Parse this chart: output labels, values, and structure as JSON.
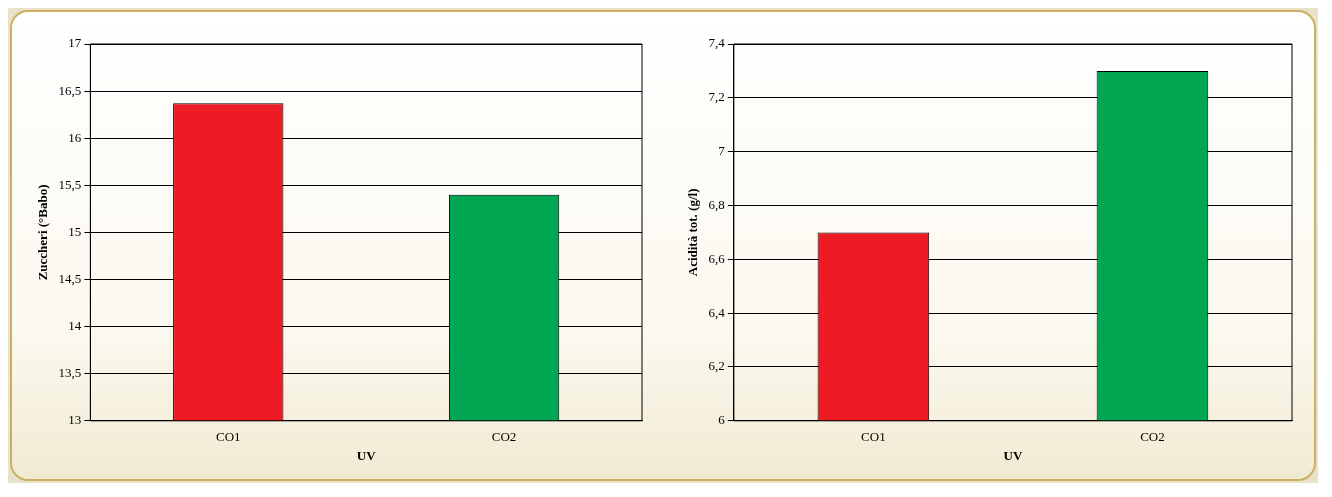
{
  "chart_data": [
    {
      "type": "bar",
      "categories": [
        "CO1",
        "CO2"
      ],
      "colors": [
        "#ed1c24",
        "#00a651"
      ],
      "values": [
        16.37,
        15.4
      ],
      "xlabel": "UV",
      "ylabel": "Zuccheri (°Babo)",
      "ylim": [
        13,
        17
      ],
      "yticks": [
        13,
        {
          "value": 13.5,
          "label": "13,5"
        },
        14,
        {
          "value": 14.5,
          "label": "14,5"
        },
        15,
        {
          "value": 15.5,
          "label": "15,5"
        },
        16,
        {
          "value": 16.5,
          "label": "16,5"
        },
        17
      ],
      "grid": "y",
      "legend": false
    },
    {
      "type": "bar",
      "categories": [
        "CO1",
        "CO2"
      ],
      "colors": [
        "#ed1c24",
        "#00a651"
      ],
      "values": [
        6.7,
        7.3
      ],
      "xlabel": "UV",
      "ylabel": "Acidità tot. (g/l)",
      "ylim": [
        6,
        7.4
      ],
      "yticks": [
        6,
        {
          "value": 6.2,
          "label": "6,2"
        },
        {
          "value": 6.4,
          "label": "6,4"
        },
        {
          "value": 6.6,
          "label": "6,6"
        },
        {
          "value": 6.8,
          "label": "6,8"
        },
        7,
        {
          "value": 7.2,
          "label": "7,2"
        },
        {
          "value": 7.4,
          "label": "7,4"
        }
      ],
      "grid": "y",
      "legend": false
    }
  ]
}
